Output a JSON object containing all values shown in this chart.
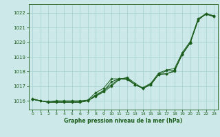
{
  "xlabel": "Graphe pression niveau de la mer (hPa)",
  "background_color": "#cce8e8",
  "grid_color": "#aad4d4",
  "line_color": "#1a5c1a",
  "ylim": [
    1015.4,
    1022.6
  ],
  "xlim": [
    -0.5,
    23.5
  ],
  "yticks": [
    1016,
    1017,
    1018,
    1019,
    1020,
    1021,
    1022
  ],
  "xticks": [
    0,
    1,
    2,
    3,
    4,
    5,
    6,
    7,
    8,
    9,
    10,
    11,
    12,
    13,
    14,
    15,
    16,
    17,
    18,
    19,
    20,
    21,
    22,
    23
  ],
  "series": [
    [
      1016.1,
      1016.0,
      1015.9,
      1015.9,
      1015.9,
      1015.9,
      1015.9,
      1016.0,
      1016.4,
      1016.7,
      1017.1,
      1017.5,
      1017.55,
      1017.1,
      1016.85,
      1017.1,
      1017.8,
      1017.85,
      1018.0,
      1019.2,
      1019.95,
      1021.5,
      1021.95,
      1021.8
    ],
    [
      1016.1,
      1016.0,
      1015.9,
      1015.9,
      1015.9,
      1015.9,
      1015.9,
      1016.0,
      1016.3,
      1016.6,
      1017.0,
      1017.45,
      1017.6,
      1017.2,
      1016.85,
      1017.15,
      1017.8,
      1018.05,
      1018.1,
      1019.15,
      1019.95,
      1021.55,
      1021.9,
      1021.75
    ],
    [
      1016.1,
      1016.0,
      1015.9,
      1015.95,
      1015.95,
      1015.95,
      1015.95,
      1016.0,
      1016.35,
      1016.65,
      1017.3,
      1017.5,
      1017.5,
      1017.1,
      1016.85,
      1017.1,
      1017.8,
      1017.85,
      1018.05,
      1019.2,
      1019.95,
      1021.5,
      1021.95,
      1021.75
    ],
    [
      1016.15,
      1016.0,
      1015.95,
      1016.0,
      1016.0,
      1016.0,
      1016.0,
      1016.05,
      1016.55,
      1016.85,
      1017.5,
      1017.5,
      1017.45,
      1017.1,
      1016.9,
      1017.2,
      1017.9,
      1018.1,
      1018.2,
      1019.3,
      1020.05,
      1021.6,
      1021.95,
      1021.8
    ]
  ]
}
